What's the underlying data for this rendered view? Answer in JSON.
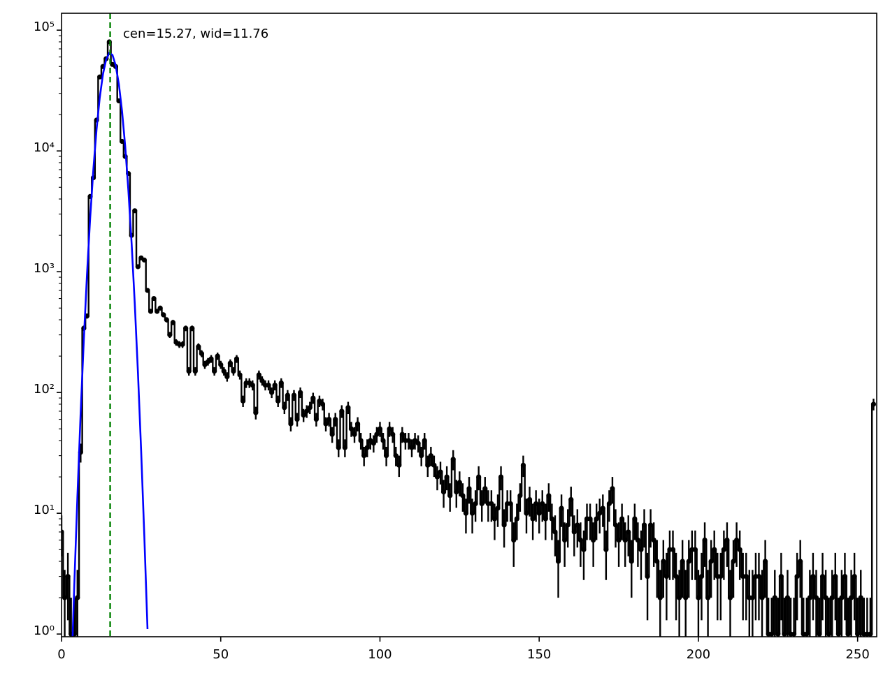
{
  "chart_data": {
    "type": "errorbar",
    "annotation": "cen=15.27, wid=11.76",
    "vline": {
      "x": 15.27,
      "color": "#008000"
    },
    "log_y": true,
    "xlim": [
      0,
      256
    ],
    "ylim": [
      0.95,
      138000
    ],
    "xticks": [
      0,
      50,
      100,
      150,
      200,
      250
    ],
    "yticks": [
      {
        "value": 1,
        "label": "10⁰"
      },
      {
        "value": 10,
        "label": "10¹"
      },
      {
        "value": 100,
        "label": "10²"
      },
      {
        "value": 1000,
        "label": "10³"
      },
      {
        "value": 10000,
        "label": "10⁴"
      },
      {
        "value": 100000,
        "label": "10⁵"
      }
    ],
    "series": [
      {
        "type": "errorbar-step",
        "color": "#000000",
        "x": [
          0,
          1,
          2,
          3,
          4,
          5,
          6,
          7,
          8,
          9,
          10,
          11,
          12,
          13,
          14,
          15,
          16,
          17,
          18,
          19,
          20,
          21,
          22,
          23,
          24,
          25,
          26,
          27,
          28,
          29,
          30,
          31,
          32,
          33,
          34,
          35,
          36,
          37,
          38,
          39,
          40,
          41,
          42,
          43,
          44,
          45,
          46,
          47,
          48,
          49,
          50,
          51,
          52,
          53,
          54,
          55,
          56,
          57,
          58,
          59,
          60,
          61,
          62,
          63,
          64,
          65,
          66,
          67,
          68,
          69,
          70,
          71,
          72,
          73,
          74,
          75,
          76,
          77,
          78,
          79,
          80,
          81,
          82,
          83,
          84,
          85,
          86,
          87,
          88,
          89,
          90,
          91,
          92,
          93,
          94,
          95,
          96,
          97,
          98,
          99,
          100,
          101,
          102,
          103,
          104,
          105,
          106,
          107,
          108,
          109,
          110,
          111,
          112,
          113,
          114,
          115,
          116,
          117,
          118,
          119,
          120,
          121,
          122,
          123,
          124,
          125,
          126,
          127,
          128,
          129,
          130,
          131,
          132,
          133,
          134,
          135,
          136,
          137,
          138,
          139,
          140,
          141,
          142,
          143,
          144,
          145,
          146,
          147,
          148,
          149,
          150,
          151,
          152,
          153,
          154,
          155,
          156,
          157,
          158,
          159,
          160,
          161,
          162,
          163,
          164,
          165,
          166,
          167,
          168,
          169,
          170,
          171,
          172,
          173,
          174,
          175,
          176,
          177,
          178,
          179,
          180,
          181,
          182,
          183,
          184,
          185,
          186,
          187,
          188,
          189,
          190,
          191,
          192,
          193,
          194,
          195,
          196,
          197,
          198,
          199,
          200,
          201,
          202,
          203,
          204,
          205,
          206,
          207,
          208,
          209,
          210,
          211,
          212,
          213,
          214,
          215,
          216,
          217,
          218,
          219,
          220,
          221,
          222,
          223,
          224,
          225,
          226,
          227,
          228,
          229,
          230,
          231,
          232,
          233,
          234,
          235,
          236,
          237,
          238,
          239,
          240,
          241,
          242,
          243,
          244,
          245,
          246,
          247,
          248,
          249,
          250,
          251,
          252,
          253,
          254,
          255
        ],
        "values": [
          7,
          2,
          3,
          1,
          1,
          2,
          32,
          340,
          430,
          4200,
          6000,
          18000,
          41000,
          50000,
          58000,
          80000,
          52000,
          50000,
          26000,
          12000,
          9000,
          6500,
          2000,
          3200,
          1100,
          1300,
          1250,
          700,
          470,
          600,
          470,
          500,
          440,
          400,
          300,
          380,
          260,
          250,
          250,
          340,
          150,
          340,
          150,
          240,
          210,
          170,
          180,
          190,
          150,
          200,
          170,
          150,
          135,
          175,
          150,
          190,
          140,
          85,
          120,
          120,
          115,
          68,
          140,
          125,
          115,
          115,
          100,
          115,
          85,
          120,
          75,
          95,
          55,
          95,
          60,
          100,
          65,
          70,
          75,
          90,
          60,
          85,
          80,
          55,
          60,
          45,
          60,
          35,
          70,
          35,
          75,
          50,
          45,
          55,
          40,
          30,
          35,
          40,
          38,
          45,
          50,
          40,
          30,
          50,
          45,
          30,
          25,
          45,
          40,
          40,
          35,
          40,
          38,
          30,
          40,
          25,
          30,
          25,
          20,
          22,
          15,
          20,
          14,
          28,
          15,
          18,
          14,
          10,
          16,
          10,
          12,
          20,
          12,
          16,
          12,
          12,
          9,
          11,
          20,
          8,
          12,
          12,
          6,
          9,
          14,
          25,
          10,
          13,
          9,
          12,
          10,
          12,
          9,
          14,
          9,
          7,
          4,
          11,
          6,
          8,
          13,
          7,
          8,
          6,
          5,
          9,
          9,
          6,
          9,
          10,
          11,
          5,
          12,
          16,
          8,
          6,
          9,
          6,
          7,
          4,
          9,
          6,
          5,
          8,
          3,
          8,
          6,
          4,
          2,
          4,
          3,
          5,
          5,
          3,
          2,
          4,
          2,
          4,
          5,
          5,
          2,
          3,
          6,
          2,
          4,
          5,
          3,
          3,
          5,
          6,
          2,
          4,
          6,
          5,
          3,
          3,
          2,
          2,
          3,
          3,
          2,
          4,
          1,
          1,
          2,
          1,
          3,
          1,
          2,
          1,
          1,
          3,
          4,
          1,
          1,
          2,
          3,
          2,
          1,
          3,
          2,
          1,
          2,
          3,
          1,
          2,
          3,
          1,
          2,
          3,
          1,
          2,
          1,
          1,
          1,
          80
        ],
        "errors": [
          2.6,
          1.4,
          1.7,
          1,
          1,
          1.4,
          5.7,
          18,
          21,
          65,
          77,
          134,
          202,
          224,
          241,
          283,
          228,
          224,
          161,
          110,
          95,
          81,
          45,
          57,
          33,
          36,
          35,
          26,
          22,
          24,
          22,
          22,
          21,
          20,
          17,
          19,
          16,
          16,
          16,
          18,
          12,
          18,
          12,
          15,
          14,
          13,
          13,
          14,
          12,
          14,
          13,
          12,
          12,
          13,
          12,
          14,
          12,
          9.2,
          11,
          11,
          11,
          8.2,
          12,
          11,
          11,
          11,
          10,
          11,
          9.2,
          11,
          8.7,
          9.7,
          7.4,
          9.7,
          7.7,
          10,
          8.1,
          8.4,
          8.7,
          9.5,
          7.7,
          9.2,
          8.9,
          7.4,
          7.7,
          6.7,
          7.7,
          5.9,
          8.4,
          5.9,
          8.7,
          7.1,
          6.7,
          7.4,
          6.3,
          5.5,
          5.9,
          6.3,
          6.2,
          6.7,
          7.1,
          6.3,
          5.5,
          7.1,
          6.7,
          5.5,
          5,
          6.7,
          6.3,
          6.3,
          5.9,
          6.3,
          6.2,
          5.5,
          6.3,
          5,
          5.5,
          5,
          4.5,
          4.7,
          3.9,
          4.5,
          3.7,
          5.3,
          3.9,
          4.2,
          3.7,
          3.2,
          4,
          3.2,
          3.5,
          4.5,
          3.5,
          4,
          3.5,
          3.5,
          3,
          3.3,
          4.5,
          2.8,
          3.5,
          3.5,
          2.4,
          3,
          3.7,
          5,
          3.2,
          3.6,
          3,
          3.5,
          3.2,
          3.5,
          3,
          3.7,
          3,
          2.6,
          2,
          3.3,
          2.4,
          2.8,
          3.6,
          2.6,
          2.8,
          2.4,
          2.2,
          3,
          3,
          2.4,
          3,
          3.2,
          3.3,
          2.2,
          3.5,
          4,
          2.8,
          2.4,
          3,
          2.4,
          2.6,
          2,
          3,
          2.4,
          2.2,
          2.8,
          1.7,
          2.8,
          2.4,
          2,
          1.4,
          2,
          1.7,
          2.2,
          2.2,
          1.7,
          1.4,
          2,
          1.4,
          2,
          2.2,
          2.2,
          1.4,
          1.7,
          2.4,
          1.4,
          2,
          2.2,
          1.7,
          1.7,
          2.2,
          2.4,
          1.4,
          2,
          2.4,
          2.2,
          1.7,
          1.7,
          1.4,
          1.4,
          1.7,
          1.7,
          1.4,
          2,
          1,
          1,
          1.4,
          1,
          1.7,
          1,
          1.4,
          1,
          1,
          1.7,
          2,
          1,
          1,
          1.4,
          1.7,
          1.4,
          1,
          1.7,
          1.4,
          1,
          1.4,
          1.7,
          1,
          1.4,
          1.7,
          1,
          1.4,
          1.7,
          1,
          1.4,
          1,
          1,
          1,
          8.9
        ]
      },
      {
        "type": "line",
        "color": "#0000ff",
        "x": [
          3,
          4,
          5,
          6,
          7,
          8,
          9,
          10,
          11,
          12,
          13,
          14,
          15,
          16,
          17,
          18,
          19,
          20,
          21,
          22,
          23,
          24,
          25,
          26,
          27
        ],
        "values": [
          0.38,
          2.5,
          14,
          67,
          273,
          947,
          2800,
          7030,
          15100,
          27600,
          43000,
          57100,
          64600,
          62300,
          51200,
          35800,
          21400,
          10900,
          4690,
          1740,
          545,
          146,
          33,
          6.5,
          1.1
        ]
      }
    ]
  }
}
